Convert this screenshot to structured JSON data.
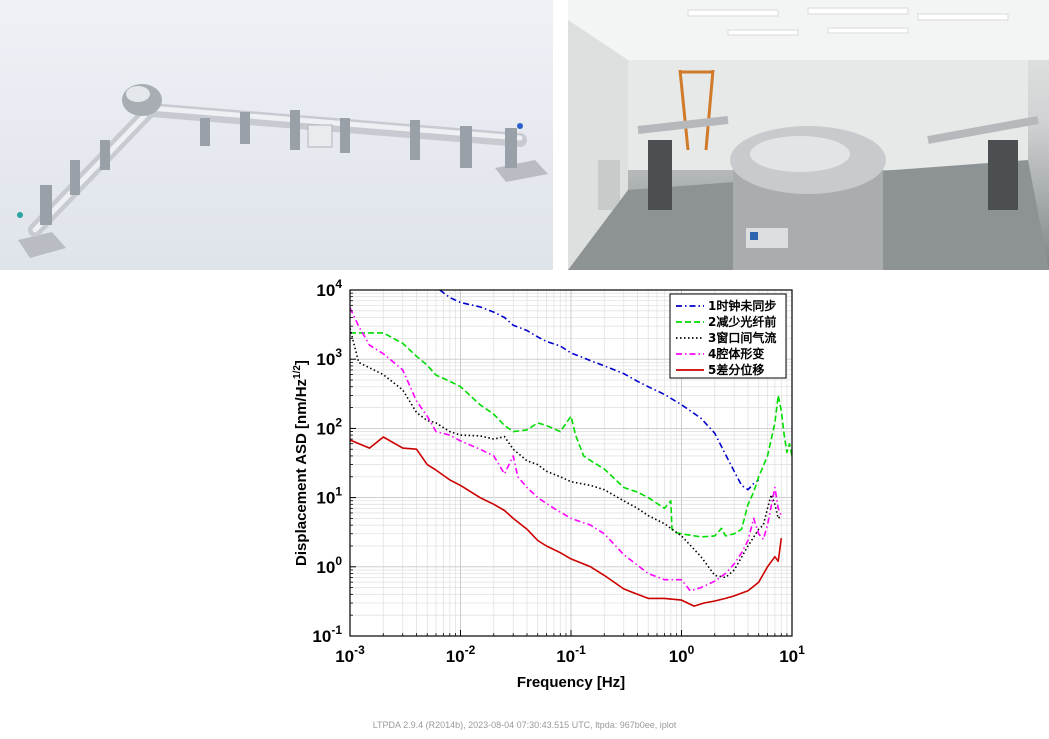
{
  "chart_data": {
    "type": "line",
    "xlabel": "Frequency [Hz]",
    "ylabel": "Displacement ASD [nm/Hz",
    "ylabel_exponent": "1/2",
    "ylabel_close": "]",
    "x_scale": "log",
    "y_scale": "log",
    "xlim": [
      0.001,
      10
    ],
    "ylim": [
      0.1,
      10000
    ],
    "x_ticks": [
      {
        "base": "10",
        "exp": "-3",
        "value": 0.001
      },
      {
        "base": "10",
        "exp": "-2",
        "value": 0.01
      },
      {
        "base": "10",
        "exp": "-1",
        "value": 0.1
      },
      {
        "base": "10",
        "exp": "0",
        "value": 1
      },
      {
        "base": "10",
        "exp": "1",
        "value": 10
      }
    ],
    "y_ticks": [
      {
        "base": "10",
        "exp": "-1",
        "value": 0.1
      },
      {
        "base": "10",
        "exp": "0",
        "value": 1
      },
      {
        "base": "10",
        "exp": "1",
        "value": 10
      },
      {
        "base": "10",
        "exp": "2",
        "value": 100
      },
      {
        "base": "10",
        "exp": "3",
        "value": 1000
      },
      {
        "base": "10",
        "exp": "4",
        "value": 10000
      }
    ],
    "grid": true,
    "legend_position": "top-right",
    "series": [
      {
        "name": "1时钟未同步",
        "color": "#0000cc",
        "dash": "dash-dot",
        "points": [
          [
            0.0065,
            10000
          ],
          [
            0.008,
            7800
          ],
          [
            0.01,
            6600
          ],
          [
            0.015,
            5700
          ],
          [
            0.02,
            4800
          ],
          [
            0.025,
            4000
          ],
          [
            0.03,
            3100
          ],
          [
            0.04,
            2600
          ],
          [
            0.05,
            2100
          ],
          [
            0.06,
            1800
          ],
          [
            0.08,
            1550
          ],
          [
            0.1,
            1230
          ],
          [
            0.12,
            1100
          ],
          [
            0.15,
            950
          ],
          [
            0.2,
            800
          ],
          [
            0.3,
            620
          ],
          [
            0.4,
            480
          ],
          [
            0.5,
            400
          ],
          [
            0.7,
            310
          ],
          [
            1,
            220
          ],
          [
            1.5,
            140
          ],
          [
            2,
            85
          ],
          [
            2.5,
            42
          ],
          [
            3,
            24
          ],
          [
            3.5,
            15
          ],
          [
            4,
            13
          ],
          [
            4.5,
            16
          ],
          [
            5,
            18
          ]
        ]
      },
      {
        "name": "2减少光纤前",
        "color": "#00dd00",
        "dash": "dash",
        "points": [
          [
            0.001,
            2400
          ],
          [
            0.0015,
            2400
          ],
          [
            0.002,
            2400
          ],
          [
            0.003,
            1700
          ],
          [
            0.004,
            1100
          ],
          [
            0.005,
            820
          ],
          [
            0.006,
            590
          ],
          [
            0.008,
            480
          ],
          [
            0.01,
            400
          ],
          [
            0.015,
            220
          ],
          [
            0.02,
            160
          ],
          [
            0.025,
            110
          ],
          [
            0.03,
            90
          ],
          [
            0.04,
            95
          ],
          [
            0.05,
            120
          ],
          [
            0.06,
            110
          ],
          [
            0.08,
            90
          ],
          [
            0.1,
            150
          ],
          [
            0.11,
            80
          ],
          [
            0.13,
            40
          ],
          [
            0.16,
            32
          ],
          [
            0.2,
            26
          ],
          [
            0.3,
            14
          ],
          [
            0.4,
            12
          ],
          [
            0.5,
            10
          ],
          [
            0.7,
            7
          ],
          [
            0.8,
            9
          ],
          [
            0.82,
            3.5
          ],
          [
            0.9,
            3.1
          ],
          [
            1,
            3
          ],
          [
            1.5,
            2.7
          ],
          [
            2,
            2.8
          ],
          [
            2.3,
            3.6
          ],
          [
            2.5,
            2.8
          ],
          [
            3,
            3
          ],
          [
            3.5,
            3.5
          ],
          [
            4,
            8
          ],
          [
            4.5,
            12
          ],
          [
            5,
            20
          ],
          [
            6,
            40
          ],
          [
            7,
            120
          ],
          [
            7.5,
            300
          ],
          [
            8,
            180
          ],
          [
            8.5,
            80
          ],
          [
            9,
            45
          ],
          [
            9.5,
            60
          ],
          [
            10,
            40
          ]
        ]
      },
      {
        "name": "3窗口间气流",
        "color": "#000000",
        "dash": "dot",
        "points": [
          [
            0.001,
            2800
          ],
          [
            0.0012,
            900
          ],
          [
            0.0015,
            750
          ],
          [
            0.002,
            600
          ],
          [
            0.003,
            360
          ],
          [
            0.004,
            170
          ],
          [
            0.005,
            130
          ],
          [
            0.006,
            120
          ],
          [
            0.008,
            90
          ],
          [
            0.01,
            80
          ],
          [
            0.015,
            78
          ],
          [
            0.02,
            70
          ],
          [
            0.025,
            76
          ],
          [
            0.03,
            50
          ],
          [
            0.04,
            34
          ],
          [
            0.05,
            30
          ],
          [
            0.06,
            24
          ],
          [
            0.08,
            20
          ],
          [
            0.1,
            17
          ],
          [
            0.15,
            15
          ],
          [
            0.2,
            13
          ],
          [
            0.3,
            9
          ],
          [
            0.4,
            7
          ],
          [
            0.5,
            5.5
          ],
          [
            0.7,
            4.2
          ],
          [
            1,
            2.8
          ],
          [
            1.5,
            1.4
          ],
          [
            2,
            0.75
          ],
          [
            2.5,
            0.7
          ],
          [
            3,
            0.9
          ],
          [
            4,
            2
          ],
          [
            5,
            3.5
          ],
          [
            5.5,
            4
          ],
          [
            6,
            7
          ],
          [
            6.5,
            11
          ],
          [
            7,
            8
          ],
          [
            7.5,
            5
          ],
          [
            8,
            5.5
          ]
        ]
      },
      {
        "name": "4腔体形变",
        "color": "#ff00ff",
        "dash": "dash-dot",
        "points": [
          [
            0.001,
            5500
          ],
          [
            0.0012,
            3000
          ],
          [
            0.0015,
            1600
          ],
          [
            0.002,
            1200
          ],
          [
            0.003,
            700
          ],
          [
            0.004,
            250
          ],
          [
            0.005,
            150
          ],
          [
            0.006,
            90
          ],
          [
            0.008,
            80
          ],
          [
            0.01,
            66
          ],
          [
            0.015,
            50
          ],
          [
            0.02,
            40
          ],
          [
            0.025,
            22
          ],
          [
            0.03,
            40
          ],
          [
            0.033,
            20
          ],
          [
            0.04,
            14
          ],
          [
            0.05,
            10
          ],
          [
            0.07,
            7
          ],
          [
            0.1,
            5
          ],
          [
            0.15,
            4
          ],
          [
            0.2,
            3
          ],
          [
            0.3,
            1.5
          ],
          [
            0.4,
            1.05
          ],
          [
            0.5,
            0.8
          ],
          [
            0.7,
            0.65
          ],
          [
            1,
            0.65
          ],
          [
            1.2,
            0.45
          ],
          [
            1.5,
            0.5
          ],
          [
            2,
            0.62
          ],
          [
            2.5,
            0.8
          ],
          [
            3,
            1.1
          ],
          [
            3.5,
            1.6
          ],
          [
            4,
            2.4
          ],
          [
            4.5,
            5
          ],
          [
            5,
            3
          ],
          [
            5.5,
            2.5
          ],
          [
            6,
            4
          ],
          [
            7,
            14
          ],
          [
            7.5,
            7
          ],
          [
            8,
            5.5
          ]
        ]
      },
      {
        "name": "5差分位移",
        "color": "#cc0000",
        "dash": "solid",
        "points": [
          [
            0.001,
            68
          ],
          [
            0.0015,
            52
          ],
          [
            0.002,
            75
          ],
          [
            0.003,
            52
          ],
          [
            0.004,
            50
          ],
          [
            0.005,
            30
          ],
          [
            0.006,
            25
          ],
          [
            0.008,
            18
          ],
          [
            0.01,
            15
          ],
          [
            0.015,
            10
          ],
          [
            0.02,
            8
          ],
          [
            0.025,
            6.5
          ],
          [
            0.03,
            5
          ],
          [
            0.04,
            3.5
          ],
          [
            0.05,
            2.4
          ],
          [
            0.06,
            2
          ],
          [
            0.08,
            1.6
          ],
          [
            0.1,
            1.3
          ],
          [
            0.15,
            1
          ],
          [
            0.2,
            0.75
          ],
          [
            0.3,
            0.48
          ],
          [
            0.4,
            0.4
          ],
          [
            0.5,
            0.35
          ],
          [
            0.7,
            0.35
          ],
          [
            1,
            0.33
          ],
          [
            1.3,
            0.27
          ],
          [
            1.6,
            0.3
          ],
          [
            2,
            0.32
          ],
          [
            2.5,
            0.35
          ],
          [
            3,
            0.38
          ],
          [
            4,
            0.45
          ],
          [
            5,
            0.6
          ],
          [
            6,
            1
          ],
          [
            7,
            1.4
          ],
          [
            7.5,
            1.2
          ],
          [
            8,
            2.6
          ]
        ]
      }
    ]
  },
  "footer": "LTPDA 2.9.4 (R2014b), 2023-08-04 07:30:43.515 UTC, ltpda: 967b0ee, iplot"
}
